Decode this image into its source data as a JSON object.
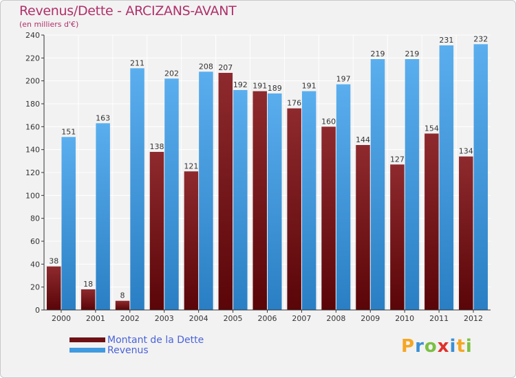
{
  "header": {
    "title": "Revenus/Dette - ARCIZANS-AVANT",
    "subtitle": "(en milliers d'€)"
  },
  "legend": {
    "items": [
      {
        "label": "Montant de la Dette",
        "color": "#7a1418"
      },
      {
        "label": "Revenus",
        "color": "#3f9ae0"
      }
    ]
  },
  "logo": {
    "text": "Proxiti",
    "letters": [
      "P",
      "r",
      "o",
      "x",
      "i",
      "t",
      "i"
    ],
    "colors": [
      "#f5a623",
      "#3b8fd6",
      "#7bc043",
      "#e0302a",
      "#3b8fd6",
      "#f5a623",
      "#7bc043"
    ]
  },
  "chart_data": {
    "type": "bar",
    "title": "Revenus/Dette - ARCIZANS-AVANT",
    "ylabel": "(en milliers d'€)",
    "categories": [
      "2000",
      "2001",
      "2002",
      "2003",
      "2004",
      "2005",
      "2006",
      "2007",
      "2008",
      "2009",
      "2010",
      "2011",
      "2012"
    ],
    "series": [
      {
        "name": "Montant de la Dette",
        "color": "#7a1418",
        "values": [
          38,
          18,
          8,
          138,
          121,
          207,
          191,
          176,
          160,
          144,
          127,
          154,
          134
        ]
      },
      {
        "name": "Revenus",
        "color": "#3f9ae0",
        "values": [
          151,
          163,
          211,
          202,
          208,
          192,
          189,
          191,
          197,
          219,
          219,
          231,
          232
        ]
      }
    ],
    "ylim": [
      0,
      240
    ],
    "yticks": [
      0,
      20,
      40,
      60,
      80,
      100,
      120,
      140,
      160,
      180,
      200,
      220,
      240
    ],
    "grid": true,
    "legend_position": "bottom-left"
  }
}
